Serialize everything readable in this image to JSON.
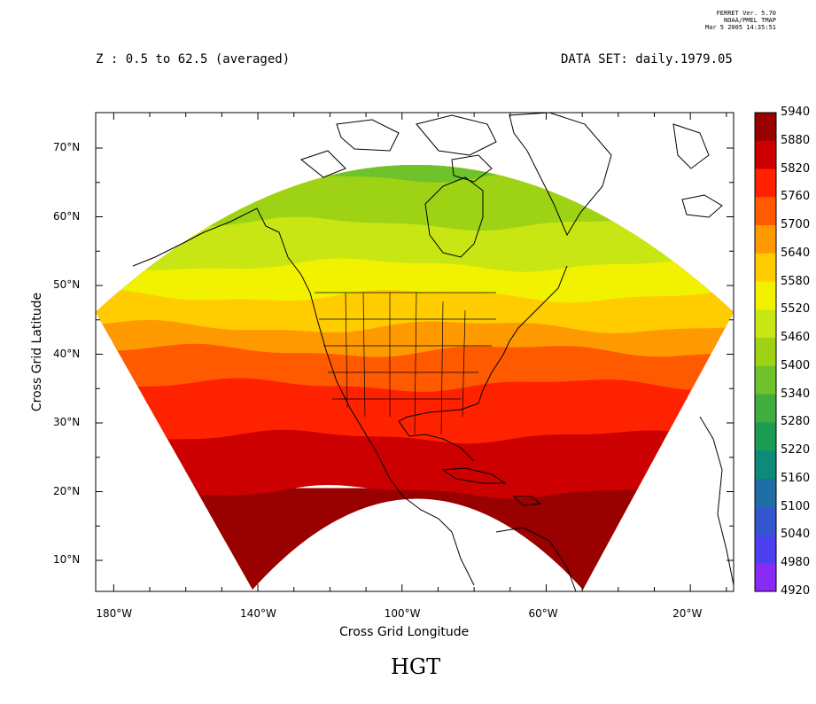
{
  "header": {
    "z_range": "Z : 0.5 to 62.5 (averaged)",
    "dataset": "DATA SET: daily.1979.05",
    "ferret_lines": [
      "FERRET Ver. 5.70",
      "NOAA/PMEL TMAP",
      "Mar  5 2005 14:35:51"
    ]
  },
  "variable_title": "HGT",
  "axes": {
    "x_title": "Cross Grid Longitude",
    "y_title": "Cross Grid Latitude",
    "x_ticks": [
      {
        "value": -180,
        "label": "180°W"
      },
      {
        "value": -140,
        "label": "140°W"
      },
      {
        "value": -100,
        "label": "100°W"
      },
      {
        "value": -60,
        "label": "60°W"
      },
      {
        "value": -20,
        "label": "20°W"
      }
    ],
    "y_ticks": [
      {
        "value": 10,
        "label": "10°N"
      },
      {
        "value": 20,
        "label": "20°N"
      },
      {
        "value": 30,
        "label": "30°N"
      },
      {
        "value": 40,
        "label": "40°N"
      },
      {
        "value": 50,
        "label": "50°N"
      },
      {
        "value": 60,
        "label": "60°N"
      },
      {
        "value": 70,
        "label": "70°N"
      }
    ]
  },
  "colorbar": {
    "levels": [
      "5940",
      "5880",
      "5820",
      "5760",
      "5700",
      "5640",
      "5580",
      "5520",
      "5460",
      "5400",
      "5340",
      "5280",
      "5220",
      "5160",
      "5100",
      "5040",
      "4980",
      "4920"
    ],
    "colors": [
      "#990000",
      "#cc0000",
      "#ff2200",
      "#ff5a00",
      "#ff9900",
      "#ffcc00",
      "#f2f200",
      "#c8e614",
      "#9ed214",
      "#6ec22a",
      "#3fae3f",
      "#1b9c50",
      "#0e8a78",
      "#1f6ea6",
      "#3355d0",
      "#4a40f0",
      "#8a2af5",
      "#d21ee8"
    ]
  },
  "map_bands": [
    {
      "lat": 20.0,
      "color": "#990000"
    },
    {
      "lat": 28.0,
      "color": "#cc0000"
    },
    {
      "lat": 35.5,
      "color": "#ff2200"
    },
    {
      "lat": 40.5,
      "color": "#ff5a00"
    },
    {
      "lat": 44.0,
      "color": "#ff9900"
    },
    {
      "lat": 48.5,
      "color": "#ffcc00"
    },
    {
      "lat": 53.0,
      "color": "#f2f200"
    },
    {
      "lat": 59.0,
      "color": "#c8e614"
    },
    {
      "lat": 66.0,
      "color": "#9ed214"
    },
    {
      "lat": 76.0,
      "color": "#6ec22a"
    }
  ]
}
